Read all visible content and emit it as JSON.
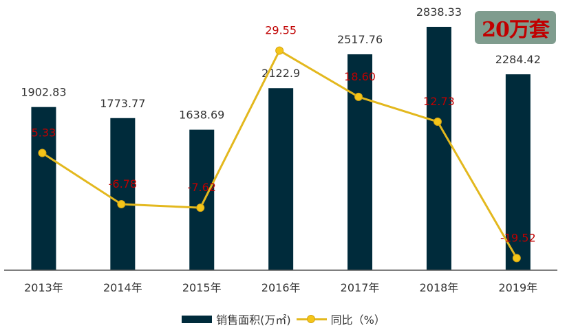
{
  "chart_data": {
    "type": "bar",
    "categories": [
      "2013年",
      "2014年",
      "2015年",
      "2016年",
      "2017年",
      "2018年",
      "2019年"
    ],
    "series": [
      {
        "name": "销售面积(万㎡)",
        "type": "bar",
        "axis": "left",
        "values": [
          1902.83,
          1773.77,
          1638.69,
          2122.9,
          2517.76,
          2838.33,
          2284.42
        ],
        "labels": [
          "1902.83",
          "1773.77",
          "1638.69",
          "2122.9",
          "2517.76",
          "2838.33",
          "2284.42"
        ],
        "color": "#002b3b"
      },
      {
        "name": "同比（%）",
        "type": "line",
        "axis": "right",
        "values": [
          5.33,
          -6.78,
          -7.62,
          29.55,
          18.6,
          12.73,
          -19.52
        ],
        "labels": [
          "5.33",
          "-6.78",
          "-7.62",
          "29.55",
          "18.60",
          "12.73",
          "-19.52"
        ],
        "color": "#e3b81e",
        "label_color": "#c00000"
      }
    ],
    "ylim_left": [
      0,
      3000
    ],
    "ylim_right": [
      -25,
      35
    ],
    "grid": false,
    "legend_position": "bottom"
  },
  "badge": {
    "text": "20万套"
  },
  "legend": {
    "bar_label": "销售面积(万㎡)",
    "line_label": "同比（%）"
  }
}
